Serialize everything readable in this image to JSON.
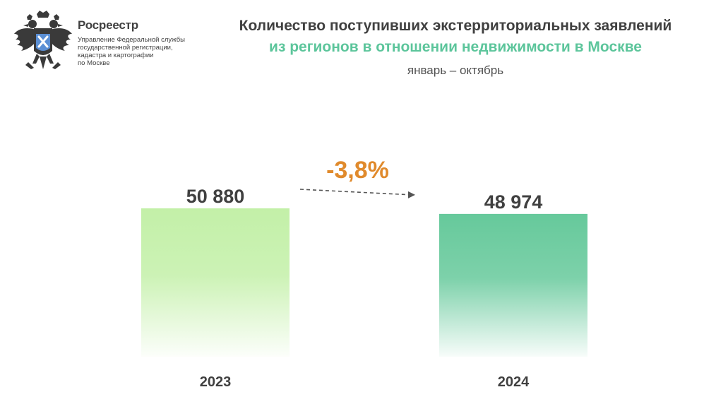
{
  "logo": {
    "name": "Росреестр",
    "subtitle_lines": [
      "Управление Федеральной службы",
      "государственной регистрации,",
      "кадастра и картографии",
      "по Москве"
    ]
  },
  "header": {
    "title_line1": "Количество поступивших экстерриториальных заявлений",
    "title_line2": "из регионов в отношении недвижимости в Москве",
    "period": "январь – октябрь"
  },
  "colors": {
    "text_dark": "#404040",
    "accent_green": "#5cc59b",
    "bar_2023": "#c3f0a8",
    "bar_2024": "#66c99b",
    "change": "#e08a2c",
    "arrow": "#555555"
  },
  "chart_data": {
    "type": "bar",
    "categories": [
      "2023",
      "2024"
    ],
    "values": [
      50880,
      48974
    ],
    "value_labels": [
      "50 880",
      "48 974"
    ],
    "change_label": "-3,8%",
    "change_percent": -3.8
  }
}
